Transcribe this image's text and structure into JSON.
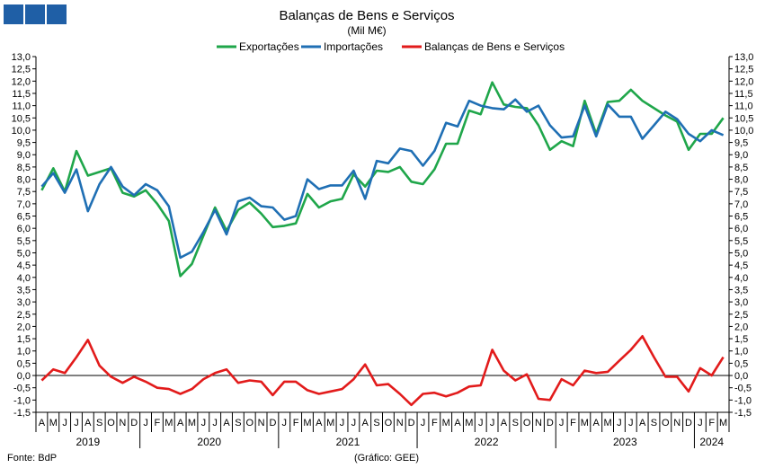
{
  "chart_data": {
    "type": "line",
    "title": "Balanças de Bens e Serviços",
    "subtitle": "(Mil M€)",
    "source": "Fonte: BdP",
    "credit": "(Gráfico: GEE)",
    "ylim": [
      -1.5,
      13.0
    ],
    "yticks": [
      "-1,5",
      "-1,0",
      "-0,5",
      "0,0",
      "0,5",
      "1,0",
      "1,5",
      "2,0",
      "2,5",
      "3,0",
      "3,5",
      "4,0",
      "4,5",
      "5,0",
      "5,5",
      "6,0",
      "6,5",
      "7,0",
      "7,5",
      "8,0",
      "8,5",
      "9,0",
      "9,5",
      "10,0",
      "10,5",
      "11,0",
      "11,5",
      "12,0",
      "12,5",
      "13,0"
    ],
    "yticks_values": [
      -1.5,
      -1.0,
      -0.5,
      0.0,
      0.5,
      1.0,
      1.5,
      2.0,
      2.5,
      3.0,
      3.5,
      4.0,
      4.5,
      5.0,
      5.5,
      6.0,
      6.5,
      7.0,
      7.5,
      8.0,
      8.5,
      9.0,
      9.5,
      10.0,
      10.5,
      11.0,
      11.5,
      12.0,
      12.5,
      13.0
    ],
    "months": [
      "A",
      "M",
      "J",
      "J",
      "A",
      "S",
      "O",
      "N",
      "D",
      "J",
      "F",
      "M",
      "A",
      "M",
      "J",
      "J",
      "A",
      "S",
      "O",
      "N",
      "D",
      "J",
      "F",
      "M",
      "A",
      "M",
      "J",
      "J",
      "A",
      "S",
      "O",
      "N",
      "D",
      "J",
      "F",
      "M",
      "A",
      "M",
      "J",
      "J",
      "A",
      "S",
      "O",
      "N",
      "D",
      "J",
      "F",
      "M",
      "A",
      "M",
      "J",
      "J",
      "A",
      "S",
      "O",
      "N",
      "D",
      "J",
      "F",
      "M"
    ],
    "years": [
      {
        "label": "2019",
        "start": 0,
        "count": 9
      },
      {
        "label": "2020",
        "start": 9,
        "count": 12
      },
      {
        "label": "2021",
        "start": 21,
        "count": 12
      },
      {
        "label": "2022",
        "start": 33,
        "count": 12
      },
      {
        "label": "2023",
        "start": 45,
        "count": 12
      },
      {
        "label": "2024",
        "start": 57,
        "count": 3
      }
    ],
    "series": [
      {
        "name": "Exportações",
        "color": "#1fa64a",
        "values": [
          7.55,
          8.45,
          7.5,
          9.15,
          8.15,
          8.3,
          8.45,
          7.45,
          7.3,
          7.55,
          7.0,
          6.3,
          4.05,
          4.55,
          5.7,
          6.85,
          5.9,
          6.75,
          7.05,
          6.6,
          6.05,
          6.1,
          6.2,
          7.4,
          6.85,
          7.1,
          7.2,
          8.2,
          7.7,
          8.35,
          8.3,
          8.5,
          7.9,
          7.8,
          8.4,
          9.45,
          9.45,
          10.8,
          10.65,
          11.95,
          11.05,
          10.95,
          10.9,
          10.2,
          9.2,
          9.55,
          9.35,
          11.2,
          9.85,
          11.15,
          11.2,
          11.65,
          11.2,
          10.9,
          10.6,
          10.35,
          9.2,
          9.85,
          9.85,
          10.5
        ]
      },
      {
        "name": "Importações",
        "color": "#1f6fb4",
        "values": [
          7.7,
          8.25,
          7.45,
          8.4,
          6.7,
          7.8,
          8.5,
          7.7,
          7.35,
          7.8,
          7.55,
          6.9,
          4.8,
          5.05,
          5.85,
          6.75,
          5.75,
          7.1,
          7.25,
          6.9,
          6.85,
          6.35,
          6.5,
          8.0,
          7.6,
          7.75,
          7.75,
          8.35,
          7.2,
          8.75,
          8.65,
          9.25,
          9.15,
          8.55,
          9.15,
          10.3,
          10.15,
          11.2,
          11.0,
          10.9,
          10.85,
          11.25,
          10.75,
          11.0,
          10.2,
          9.7,
          9.75,
          11.0,
          9.75,
          11.05,
          10.55,
          10.55,
          9.65,
          10.2,
          10.75,
          10.45,
          9.85,
          9.55,
          10.0,
          9.8
        ]
      },
      {
        "name": "Balanças de Bens e Serviços",
        "color": "#e21b1b",
        "values": [
          -0.2,
          0.25,
          0.1,
          0.75,
          1.45,
          0.4,
          -0.05,
          -0.3,
          -0.05,
          -0.25,
          -0.5,
          -0.55,
          -0.75,
          -0.55,
          -0.15,
          0.1,
          0.25,
          -0.3,
          -0.2,
          -0.25,
          -0.8,
          -0.25,
          -0.25,
          -0.6,
          -0.75,
          -0.65,
          -0.55,
          -0.15,
          0.45,
          -0.4,
          -0.35,
          -0.75,
          -1.2,
          -0.75,
          -0.7,
          -0.85,
          -0.7,
          -0.45,
          -0.4,
          1.05,
          0.2,
          -0.2,
          0.05,
          -0.95,
          -1.0,
          -0.15,
          -0.4,
          0.2,
          0.1,
          0.15,
          0.6,
          1.05,
          1.6,
          0.75,
          -0.05,
          -0.05,
          -0.65,
          0.3,
          0.0,
          0.75
        ]
      }
    ]
  }
}
